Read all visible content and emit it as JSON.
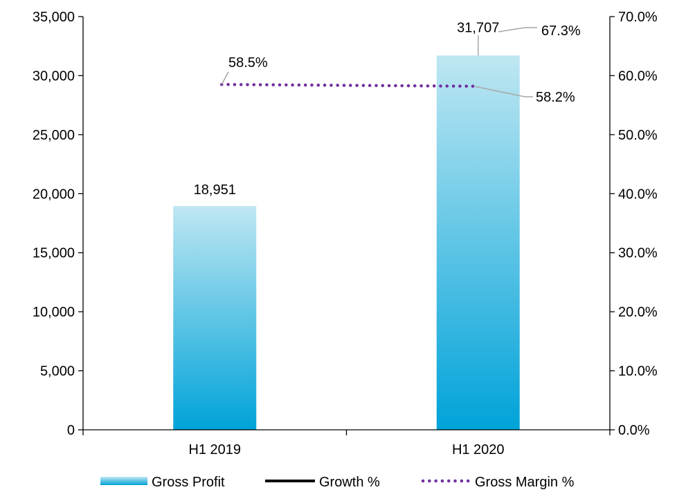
{
  "chart_data": {
    "type": "bar",
    "categories": [
      "H1 2019",
      "H1 2020"
    ],
    "series": [
      {
        "name": "Gross Profit",
        "kind": "bar",
        "axis": "left",
        "values": [
          18951,
          31707
        ],
        "labels": [
          "18,951",
          "31,707"
        ],
        "color": "#00a3d9",
        "color_light": "#bfe7f2"
      },
      {
        "name": "Growth %",
        "kind": "line",
        "axis": "right",
        "values": [
          null,
          67.3
        ],
        "labels": [
          "",
          "67.3%"
        ],
        "color": "#000000"
      },
      {
        "name": "Gross Margin %",
        "kind": "line",
        "axis": "right",
        "style": "dotted",
        "values": [
          58.5,
          58.2
        ],
        "labels": [
          "58.5%",
          "58.2%"
        ],
        "color": "#7030a0"
      }
    ],
    "y_left": {
      "min": 0,
      "max": 35000,
      "step": 5000,
      "tick_labels": [
        "0",
        "5,000",
        "10,000",
        "15,000",
        "20,000",
        "25,000",
        "30,000",
        "35,000"
      ]
    },
    "y_right": {
      "min": 0,
      "max": 70,
      "step": 10,
      "tick_labels": [
        "0.0%",
        "10.0%",
        "20.0%",
        "30.0%",
        "40.0%",
        "50.0%",
        "60.0%",
        "70.0%"
      ]
    },
    "grid": false,
    "legend_position": "bottom",
    "legend": [
      "Gross Profit",
      "Growth %",
      "Gross Margin %"
    ]
  }
}
